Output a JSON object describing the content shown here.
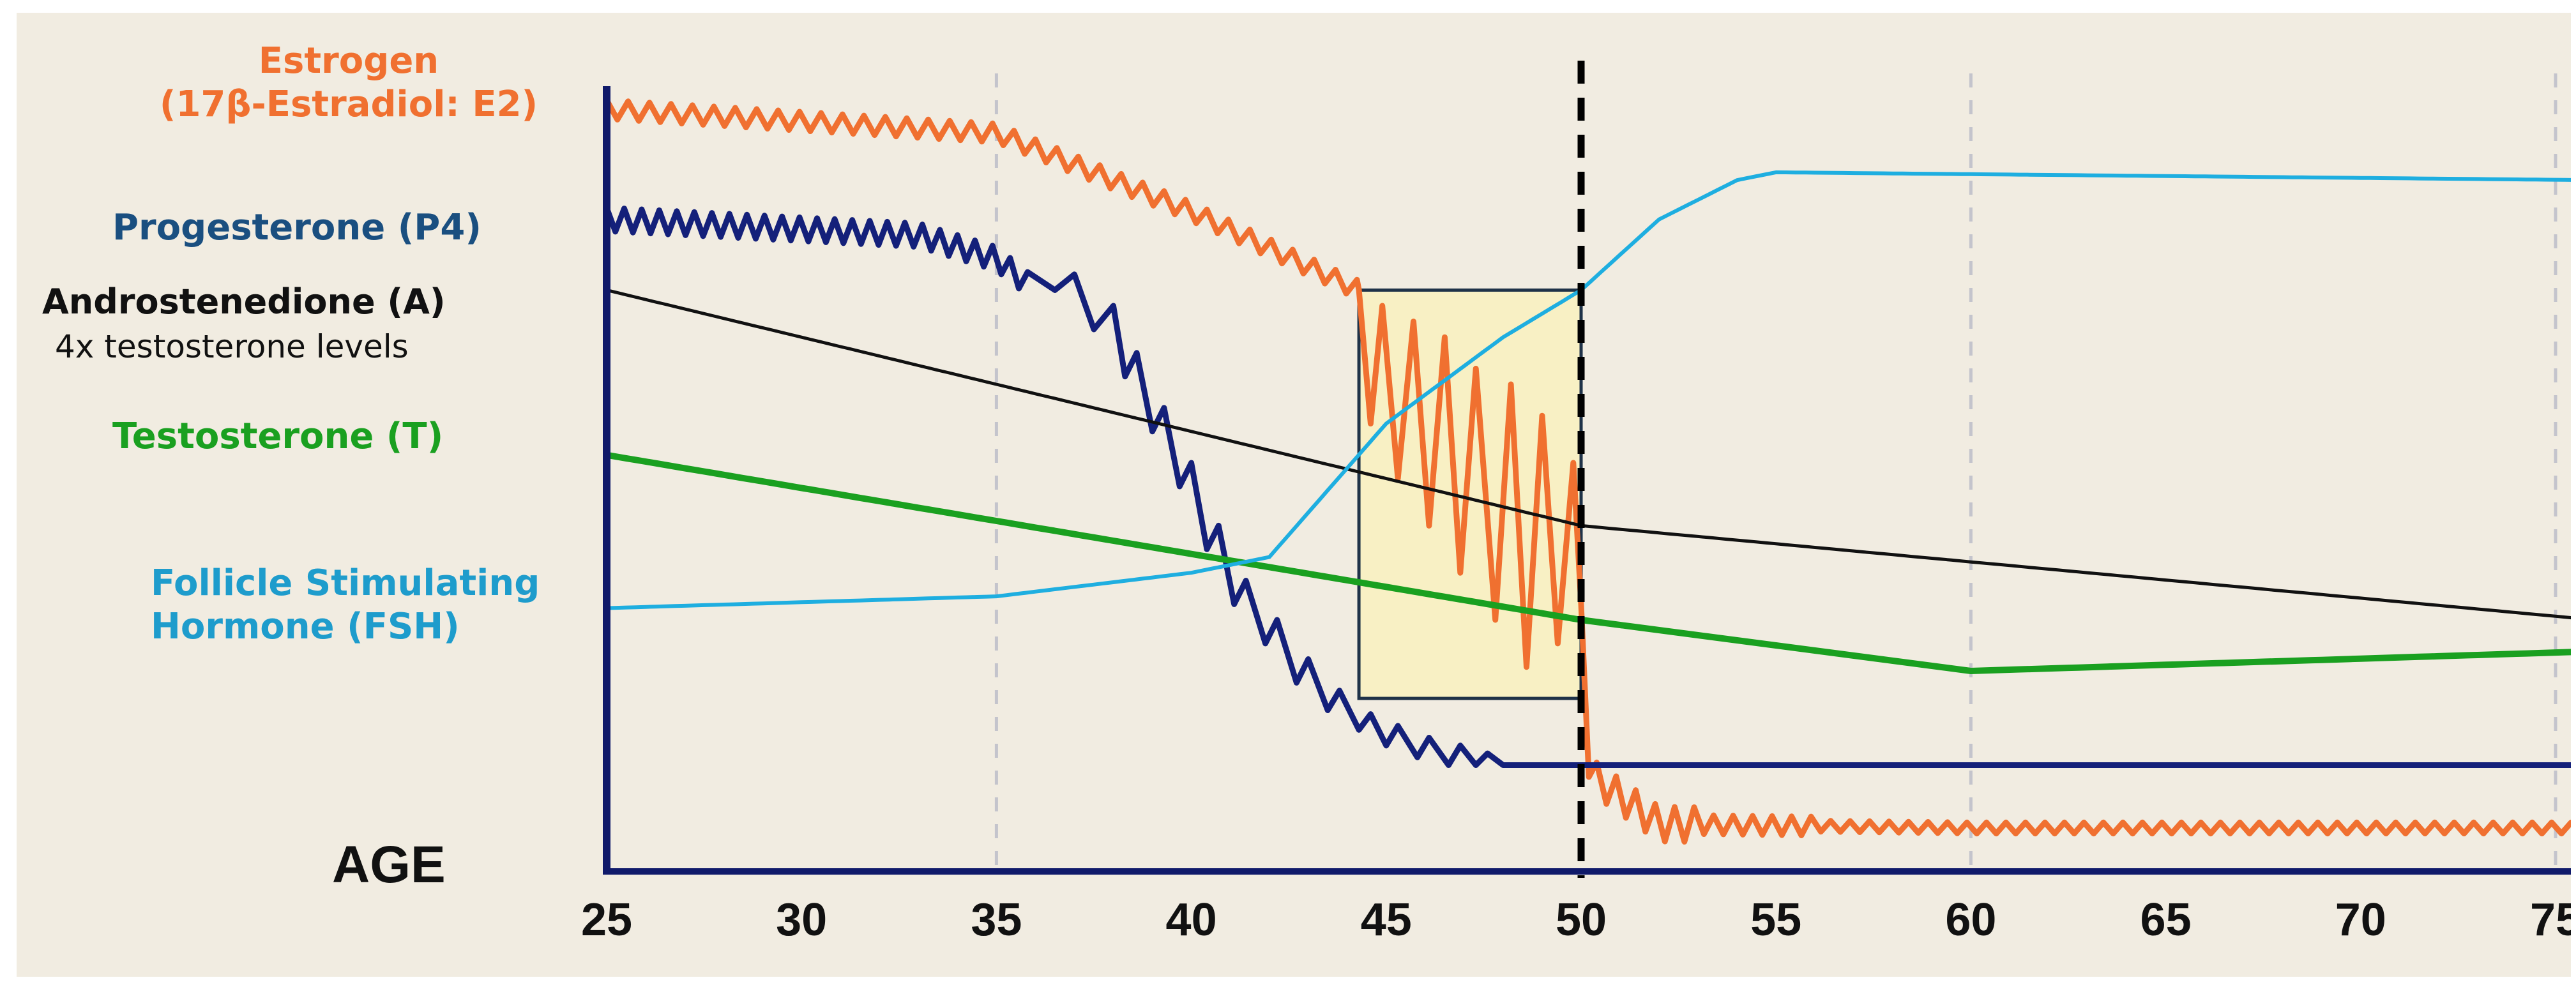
{
  "chart_data": {
    "type": "line",
    "xlabel": "AGE",
    "xlim": [
      25,
      77
    ],
    "x_ticks": [
      25,
      30,
      35,
      40,
      45,
      50,
      55,
      60,
      65,
      70,
      75
    ],
    "gridlines_at": [
      35,
      60,
      75
    ],
    "marker_line_at": 50,
    "highlight_region": {
      "x_from": 44.3,
      "x_to": 50,
      "y_from": 20,
      "y_to": 72
    },
    "y_axis": {
      "units": "relative level (unlabeled)",
      "ylim": [
        0,
        100
      ]
    },
    "series": [
      {
        "name": "Estrogen",
        "sub_name": "(17β-Estradiol: E2)",
        "color": "#f07030",
        "points": [
          [
            25,
            95
          ],
          [
            35,
            92
          ],
          [
            40,
            82
          ],
          [
            44.3,
            72
          ],
          [
            46,
            66
          ],
          [
            48,
            50
          ],
          [
            50,
            30
          ],
          [
            50.3,
            10
          ],
          [
            52,
            4
          ],
          [
            55,
            3.8
          ],
          [
            60,
            3.5
          ],
          [
            76,
            3.5
          ]
        ]
      },
      {
        "name": "Progesterone (P4)",
        "color": "#14207a",
        "points": [
          [
            25,
            81
          ],
          [
            33,
            79
          ],
          [
            35,
            76
          ],
          [
            37,
            68
          ],
          [
            38.5,
            58
          ],
          [
            40,
            42
          ],
          [
            41,
            33
          ],
          [
            43,
            24
          ],
          [
            46,
            16
          ],
          [
            48.5,
            11.5
          ],
          [
            76,
            11.5
          ]
        ]
      },
      {
        "name": "Androstenedione (A)",
        "sub_name": "4x testosterone levels",
        "color": "#111111",
        "points": [
          [
            25,
            72
          ],
          [
            50,
            42
          ],
          [
            76,
            30
          ]
        ]
      },
      {
        "name": "Testosterone (T)",
        "color": "#1aa020",
        "points": [
          [
            25,
            51
          ],
          [
            50,
            30
          ],
          [
            60,
            23.5
          ],
          [
            76,
            26
          ]
        ]
      },
      {
        "name": "Follicle Stimulating Hormone (FSH)",
        "color": "#1eaee0",
        "points": [
          [
            25,
            31.5
          ],
          [
            35,
            33
          ],
          [
            40,
            36
          ],
          [
            42,
            38
          ],
          [
            45,
            55
          ],
          [
            48,
            66
          ],
          [
            50,
            72
          ],
          [
            52,
            81
          ],
          [
            54,
            86
          ],
          [
            55,
            87
          ],
          [
            76,
            86
          ]
        ]
      }
    ]
  }
}
